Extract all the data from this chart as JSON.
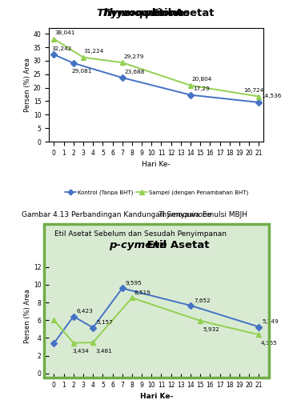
{
  "chart1": {
    "title_italic": "Thymoquinone",
    "title_normal": " Etil Asetat",
    "ylabel": "Persen (%) Area",
    "xlabel": "Hari Ke-",
    "ylim": [
      0,
      42
    ],
    "yticks": [
      0,
      5,
      10,
      15,
      20,
      25,
      30,
      35,
      40
    ],
    "xticks": [
      0,
      1,
      2,
      3,
      4,
      5,
      6,
      7,
      8,
      9,
      10,
      11,
      12,
      13,
      14,
      15,
      16,
      17,
      18,
      19,
      20,
      21
    ],
    "kontrol_x": [
      0,
      2,
      7,
      14,
      21
    ],
    "kontrol_y": [
      32.242,
      29.081,
      23.688,
      17.29,
      14.536
    ],
    "sampel_x": [
      0,
      3,
      7,
      14,
      21
    ],
    "sampel_y": [
      38.041,
      31.224,
      29.279,
      20.804,
      16.724
    ],
    "kontrol_labels": [
      "32,242",
      "29,081",
      "23,688",
      "17,29",
      "14,536"
    ],
    "sampel_labels": [
      "38,041",
      "31,224",
      "29,279",
      "20,804",
      "16,724"
    ],
    "kontrol_color": "#4472c4",
    "sampel_color": "#92d050",
    "bg_color": "#ffffff",
    "legend_kontrol": "Kontrol (Tanpa BHT)",
    "legend_sampel": "Sampel (dengan Penambahan BHT)"
  },
  "chart2": {
    "title_italic": "p-cymene",
    "title_normal": " Etil Asetat",
    "ylabel": "Persen (%) Area",
    "xlabel": "Hari Ke-",
    "ylim": [
      0,
      13
    ],
    "yticks": [
      0,
      2,
      4,
      6,
      8,
      10,
      12
    ],
    "xticks": [
      0,
      1,
      2,
      3,
      4,
      5,
      6,
      7,
      8,
      9,
      10,
      11,
      12,
      13,
      14,
      15,
      16,
      17,
      18,
      19,
      20,
      21
    ],
    "kontrol_x": [
      0,
      2,
      4,
      7,
      14,
      21
    ],
    "kontrol_y": [
      3.4,
      6.423,
      5.157,
      9.595,
      7.652,
      5.249
    ],
    "sampel_x": [
      0,
      2,
      4,
      8,
      15,
      21
    ],
    "sampel_y": [
      6.0,
      3.434,
      3.481,
      8.519,
      5.932,
      4.365
    ],
    "kontrol_labels": [
      "",
      "6,423",
      "5,157",
      "9,595",
      "7,652",
      "5,249"
    ],
    "sampel_labels": [
      "",
      "3,434",
      "3,481",
      "8,519",
      "5,932",
      "4,365"
    ],
    "kontrol_color": "#4472c4",
    "sampel_color": "#92d050",
    "bg_color": "#d9ead3",
    "border_color": "#70ad47"
  },
  "caption_normal1": "Gambar 4.13 Perbandingan Kandungan Senyawa ",
  "caption_italic": "Thymoquinone",
  "caption_normal2": " Emulsi MBJH",
  "caption_line2": "Etil Asetat Sebelum dan Sesudah Penyimpanan",
  "caption_fontsize": 6.5,
  "watermark_color": "#b8d4ea"
}
